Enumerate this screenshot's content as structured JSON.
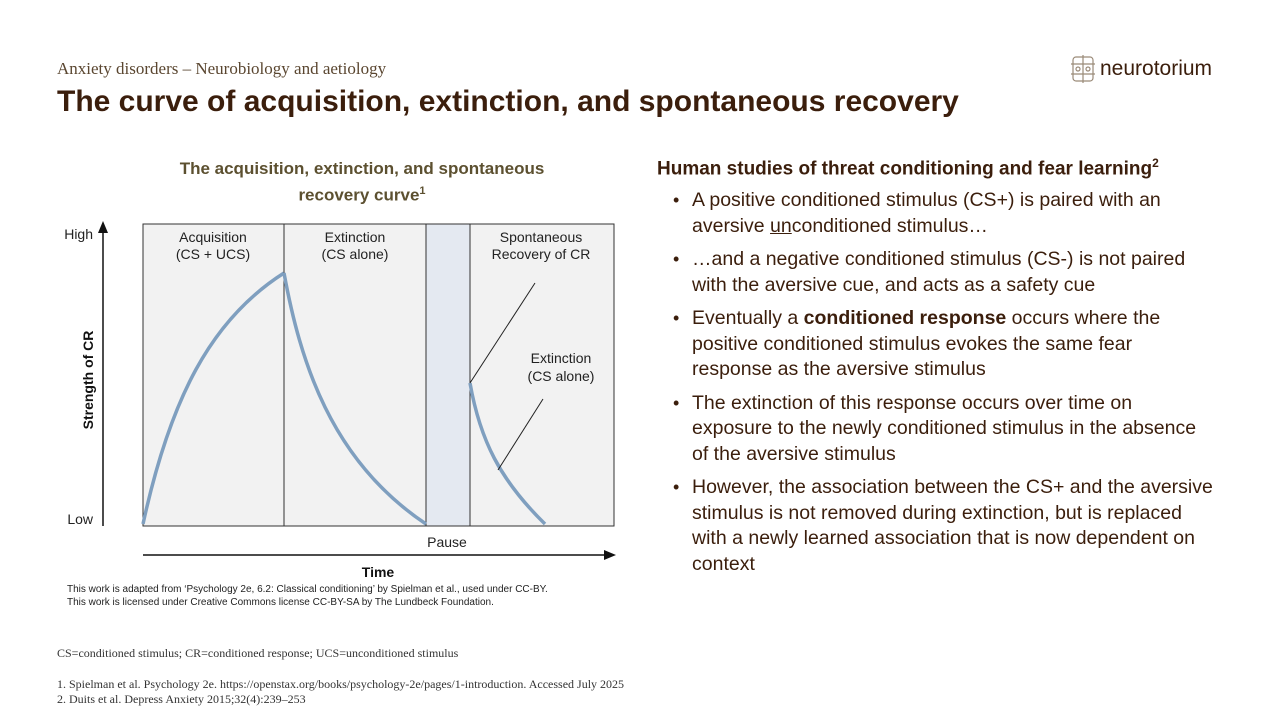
{
  "header": {
    "breadcrumb": "Anxiety disorders – Neurobiology and aetiology",
    "title": "The curve of acquisition, extinction, and spontaneous recovery",
    "logo_text": "neurotorium"
  },
  "chart": {
    "title_line1": "The acquisition, extinction, and spontaneous",
    "title_line2": "recovery curve",
    "title_ref": "1",
    "y_axis_label": "Strength of CR",
    "y_high": "High",
    "y_low": "Low",
    "x_axis_label": "Time",
    "pause_label": "Pause",
    "phases": {
      "acquisition_line1": "Acquisition",
      "acquisition_line2": "(CS + UCS)",
      "extinction_line1": "Extinction",
      "extinction_line2": "(CS alone)",
      "recovery_line1": "Spontaneous",
      "recovery_line2": "Recovery of CR",
      "extinction2_line1": "Extinction",
      "extinction2_line2": "(CS alone)"
    },
    "colors": {
      "curve": "#7f9fbf",
      "panel_fill": "#f2f2f2",
      "pause_fill": "#e4e9f1"
    }
  },
  "credits": {
    "line1": "This work is adapted from ‘Psychology 2e, 6.2: Classical conditioning’ by Spielman et al., used under CC-BY.",
    "line2": "This work is licensed under Creative Commons license CC-BY-SA by The Lundbeck Foundation."
  },
  "right": {
    "heading": "Human studies of threat conditioning and fear learning",
    "heading_ref": "2",
    "b1_a": "A positive conditioned stimulus (CS+) is paired with an aversive ",
    "b1_u": "un",
    "b1_b": "conditioned stimulus…",
    "b2": "…and a negative conditioned stimulus (CS-) is not paired with the aversive cue, and acts as a safety cue",
    "b3_a": "Eventually a ",
    "b3_bold": "conditioned response",
    "b3_b": " occurs where the positive conditioned stimulus evokes the same fear response as the aversive stimulus",
    "b4": "The extinction of this response occurs over time on exposure to the newly conditioned stimulus in the absence of the aversive stimulus",
    "b5": "However, the association between the CS+ and the aversive stimulus is not removed during extinction, but is replaced with a newly learned association that is now dependent on context"
  },
  "footer": {
    "abbrev": "CS=conditioned stimulus; CR=conditioned response; UCS=unconditioned stimulus",
    "ref1": "1. Spielman et al. Psychology 2e. https://openstax.org/books/psychology-2e/pages/1-introduction. Accessed July 2025",
    "ref2": "2. Duits et al. Depress Anxiety 2015;32(4):239–253"
  }
}
